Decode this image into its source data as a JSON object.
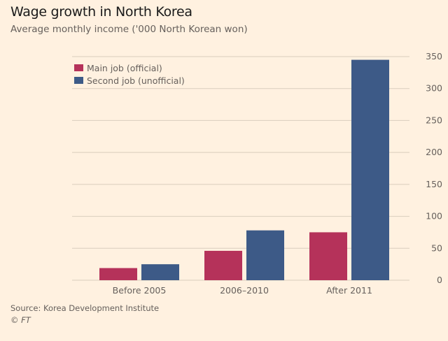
{
  "chart_data": {
    "type": "bar",
    "title": "Wage growth in North Korea",
    "subtitle": "Average monthly income ('000 North Korean won)",
    "categories": [
      "Before 2005",
      "2006–2010",
      "After 2011"
    ],
    "series": [
      {
        "name": "Main job (official)",
        "values": [
          19,
          46,
          75
        ],
        "color": "#b5325a"
      },
      {
        "name": "Second job (unofficial)",
        "values": [
          25,
          78,
          345
        ],
        "color": "#3d5a87"
      }
    ],
    "ylim": [
      0,
      350
    ],
    "yticks": [
      0,
      50,
      100,
      150,
      200,
      250,
      300,
      350
    ],
    "y_axis_side": "right",
    "grid": true,
    "legend": "top-left",
    "source": "Source: Korea Development Institute",
    "credit": "© FT"
  },
  "colors": {
    "background": "#fff1e0",
    "grid": "#d9cdbd"
  }
}
